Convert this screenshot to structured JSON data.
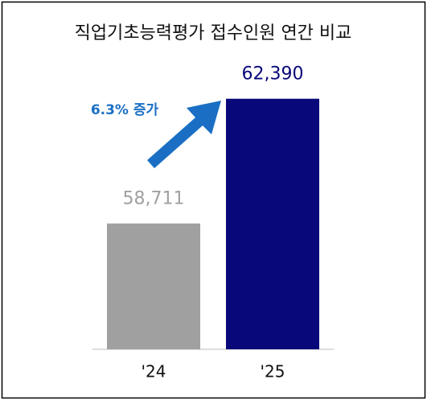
{
  "chart_data": {
    "type": "bar",
    "title": "직업기초능력평가 접수인원 연간 비교",
    "categories": [
      "'24",
      "'25"
    ],
    "values": [
      58711,
      62390
    ],
    "value_labels": [
      "58,711",
      "62,390"
    ],
    "colors": [
      "#a0a0a0",
      "#08087a"
    ],
    "ylim": [
      55000,
      63000
    ],
    "annotation": "6.3% 증가"
  }
}
